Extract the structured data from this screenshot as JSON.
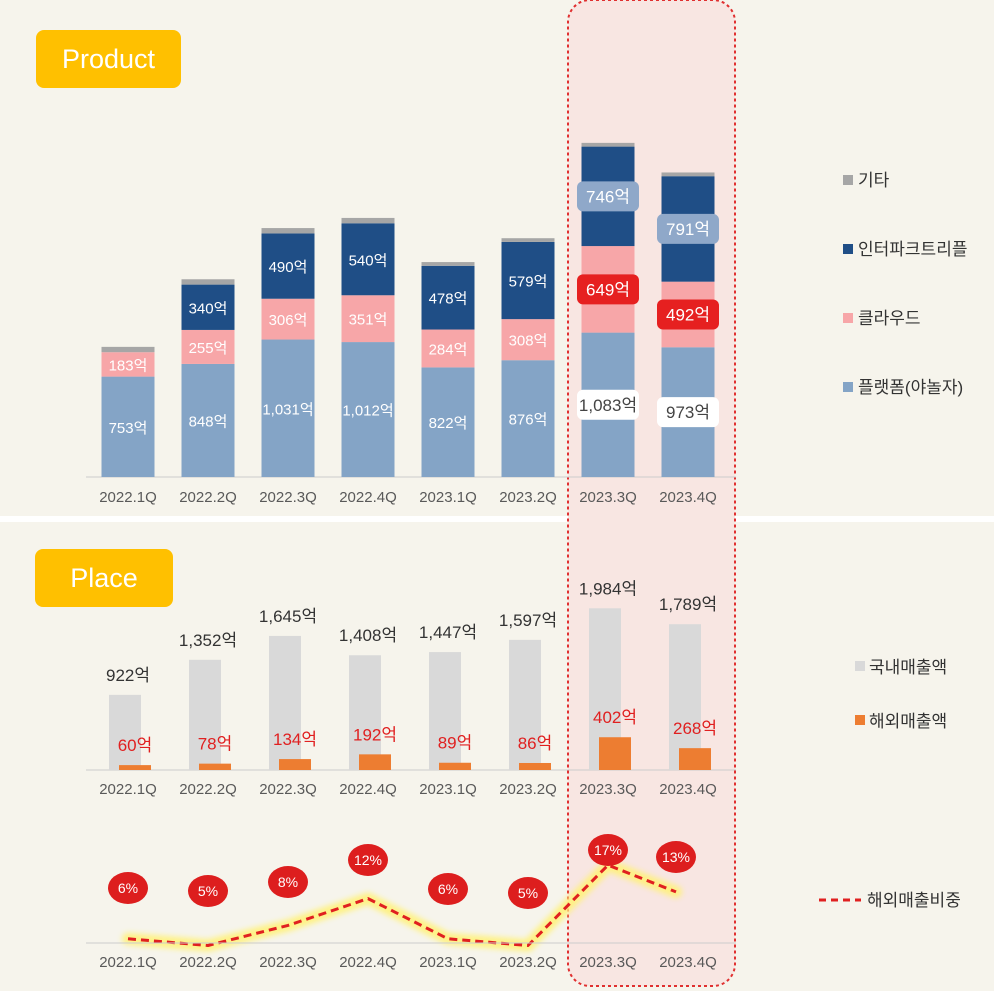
{
  "colors": {
    "background": "#f6f4ec",
    "highlight_fill": "#f8e6e2",
    "highlight_border": "#e03030",
    "badge": "#ffc000",
    "platform": "#84a4c6",
    "cloud": "#f7a6a8",
    "interpark": "#1f4e86",
    "etc": "#a6a6a6",
    "domestic": "#d9d9d9",
    "overseas": "#ed7d31",
    "ratio_line": "#e02020",
    "label_red": "#e02020"
  },
  "product": {
    "badge": "Product",
    "legend": [
      "기타",
      "인터파크트리플",
      "클라우드",
      "플랫폼(야놀자)"
    ]
  },
  "place": {
    "badge": "Place",
    "legend": [
      "국내매출액",
      "해외매출액",
      "해외매출비중"
    ]
  },
  "chart_data": [
    {
      "type": "bar",
      "stacked": true,
      "categories": [
        "2022.1Q",
        "2022.2Q",
        "2022.3Q",
        "2022.4Q",
        "2023.1Q",
        "2023.2Q",
        "2023.3Q",
        "2023.4Q"
      ],
      "series": [
        {
          "name": "플랫폼(야놀자)",
          "values": [
            753,
            848,
            1031,
            1012,
            822,
            876,
            1083,
            973
          ],
          "labels": [
            "753억",
            "848억",
            "1,031억",
            "1,012억",
            "822억",
            "876억",
            "1,083억",
            "973억"
          ]
        },
        {
          "name": "클라우드",
          "values": [
            183,
            255,
            306,
            351,
            284,
            308,
            649,
            492
          ],
          "labels": [
            "183억",
            "255억",
            "306억",
            "351억",
            "284억",
            "308억",
            "649억",
            "492억"
          ]
        },
        {
          "name": "인터파크트리플",
          "values": [
            0,
            340,
            490,
            540,
            478,
            579,
            746,
            791
          ],
          "labels": [
            "",
            "340억",
            "490억",
            "540억",
            "478억",
            "579억",
            "746억",
            "791억"
          ]
        },
        {
          "name": "기타",
          "values": [
            40,
            40,
            40,
            40,
            28,
            28,
            28,
            28
          ]
        }
      ],
      "highlighted_categories": [
        "2023.3Q",
        "2023.4Q"
      ]
    },
    {
      "type": "bar",
      "categories": [
        "2022.1Q",
        "2022.2Q",
        "2022.3Q",
        "2022.4Q",
        "2023.1Q",
        "2023.2Q",
        "2023.3Q",
        "2023.4Q"
      ],
      "series": [
        {
          "name": "국내매출액",
          "values": [
            922,
            1352,
            1645,
            1408,
            1447,
            1597,
            1984,
            1789
          ],
          "labels": [
            "922억",
            "1,352억",
            "1,645억",
            "1,408억",
            "1,447억",
            "1,597억",
            "1,984억",
            "1,789억"
          ]
        },
        {
          "name": "해외매출액",
          "values": [
            60,
            78,
            134,
            192,
            89,
            86,
            402,
            268
          ],
          "labels": [
            "60억",
            "78억",
            "134억",
            "192억",
            "89억",
            "86억",
            "402억",
            "268억"
          ]
        }
      ]
    },
    {
      "type": "line",
      "categories": [
        "2022.1Q",
        "2022.2Q",
        "2022.3Q",
        "2022.4Q",
        "2023.1Q",
        "2023.2Q",
        "2023.3Q",
        "2023.4Q"
      ],
      "series": [
        {
          "name": "해외매출비중",
          "values": [
            6,
            5,
            8,
            12,
            6,
            5,
            17,
            13
          ],
          "labels": [
            "6%",
            "5%",
            "8%",
            "12%",
            "6%",
            "5%",
            "17%",
            "13%"
          ]
        }
      ]
    }
  ]
}
